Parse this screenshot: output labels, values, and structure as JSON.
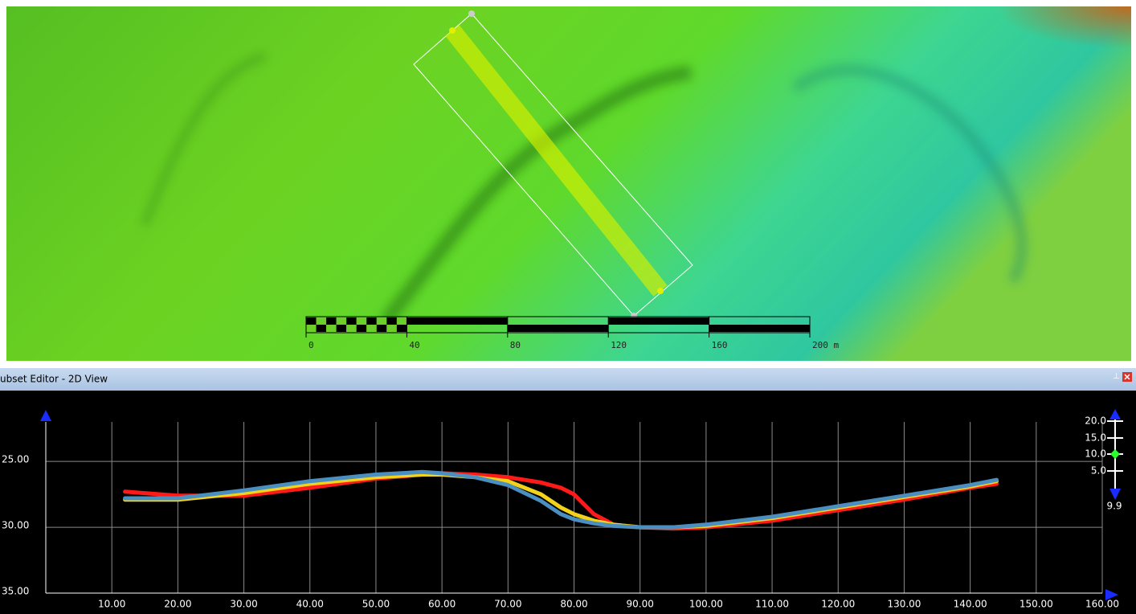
{
  "map": {
    "scale_labels": [
      "0",
      "40",
      "80",
      "120",
      "160",
      "200 m"
    ]
  },
  "panel": {
    "title": "ubset Editor - 2D View"
  },
  "chart_data": {
    "type": "line",
    "x": [
      12,
      20,
      30,
      40,
      50,
      57,
      60,
      65,
      70,
      75,
      78,
      80,
      83,
      86,
      90,
      95,
      100,
      110,
      120,
      130,
      140,
      144
    ],
    "series": [
      {
        "color": "#ff1a1a",
        "values": [
          27.3,
          27.6,
          27.6,
          27.0,
          26.3,
          26.0,
          25.9,
          26.0,
          26.2,
          26.6,
          27.0,
          27.5,
          29.0,
          29.8,
          30.0,
          30.1,
          30.0,
          29.5,
          28.7,
          27.9,
          27.0,
          26.7
        ]
      },
      {
        "color": "#f2d21a",
        "values": [
          27.9,
          27.9,
          27.4,
          26.7,
          26.2,
          26.0,
          26.0,
          26.2,
          26.5,
          27.5,
          28.5,
          29.0,
          29.5,
          29.8,
          30.0,
          30.0,
          29.9,
          29.3,
          28.5,
          27.7,
          26.9,
          26.5
        ]
      },
      {
        "color": "#4a8fc0",
        "values": [
          27.8,
          27.8,
          27.2,
          26.5,
          26.0,
          25.8,
          25.9,
          26.2,
          26.8,
          28.0,
          29.0,
          29.4,
          29.7,
          29.9,
          30.0,
          30.0,
          29.8,
          29.2,
          28.4,
          27.6,
          26.8,
          26.4
        ]
      }
    ],
    "xlim": [
      0,
      160
    ],
    "xticks": [
      {
        "value": 10,
        "label": "10.00"
      },
      {
        "value": 20,
        "label": "20.00"
      },
      {
        "value": 30,
        "label": "30.00"
      },
      {
        "value": 40,
        "label": "40.00"
      },
      {
        "value": 50,
        "label": "50.00"
      },
      {
        "value": 60,
        "label": "60.00"
      },
      {
        "value": 70,
        "label": "70.00"
      },
      {
        "value": 80,
        "label": "80.00"
      },
      {
        "value": 90,
        "label": "90.00"
      },
      {
        "value": 100,
        "label": "100.00"
      },
      {
        "value": 110,
        "label": "110.00"
      },
      {
        "value": 120,
        "label": "120.00"
      },
      {
        "value": 130,
        "label": "130.00"
      },
      {
        "value": 140,
        "label": "140.00"
      },
      {
        "value": 150,
        "label": "150.00"
      },
      {
        "value": 160,
        "label": "160.00"
      }
    ],
    "ylim": [
      35,
      22
    ],
    "yticks": [
      {
        "value": 25,
        "label": "25.00"
      },
      {
        "value": 30,
        "label": "30.00"
      },
      {
        "value": 35,
        "label": "35.00"
      }
    ],
    "grid": true
  },
  "depth_widget": {
    "labels": [
      "20.0",
      "15.0",
      "10.0",
      "5.0"
    ],
    "current": "9.9"
  }
}
